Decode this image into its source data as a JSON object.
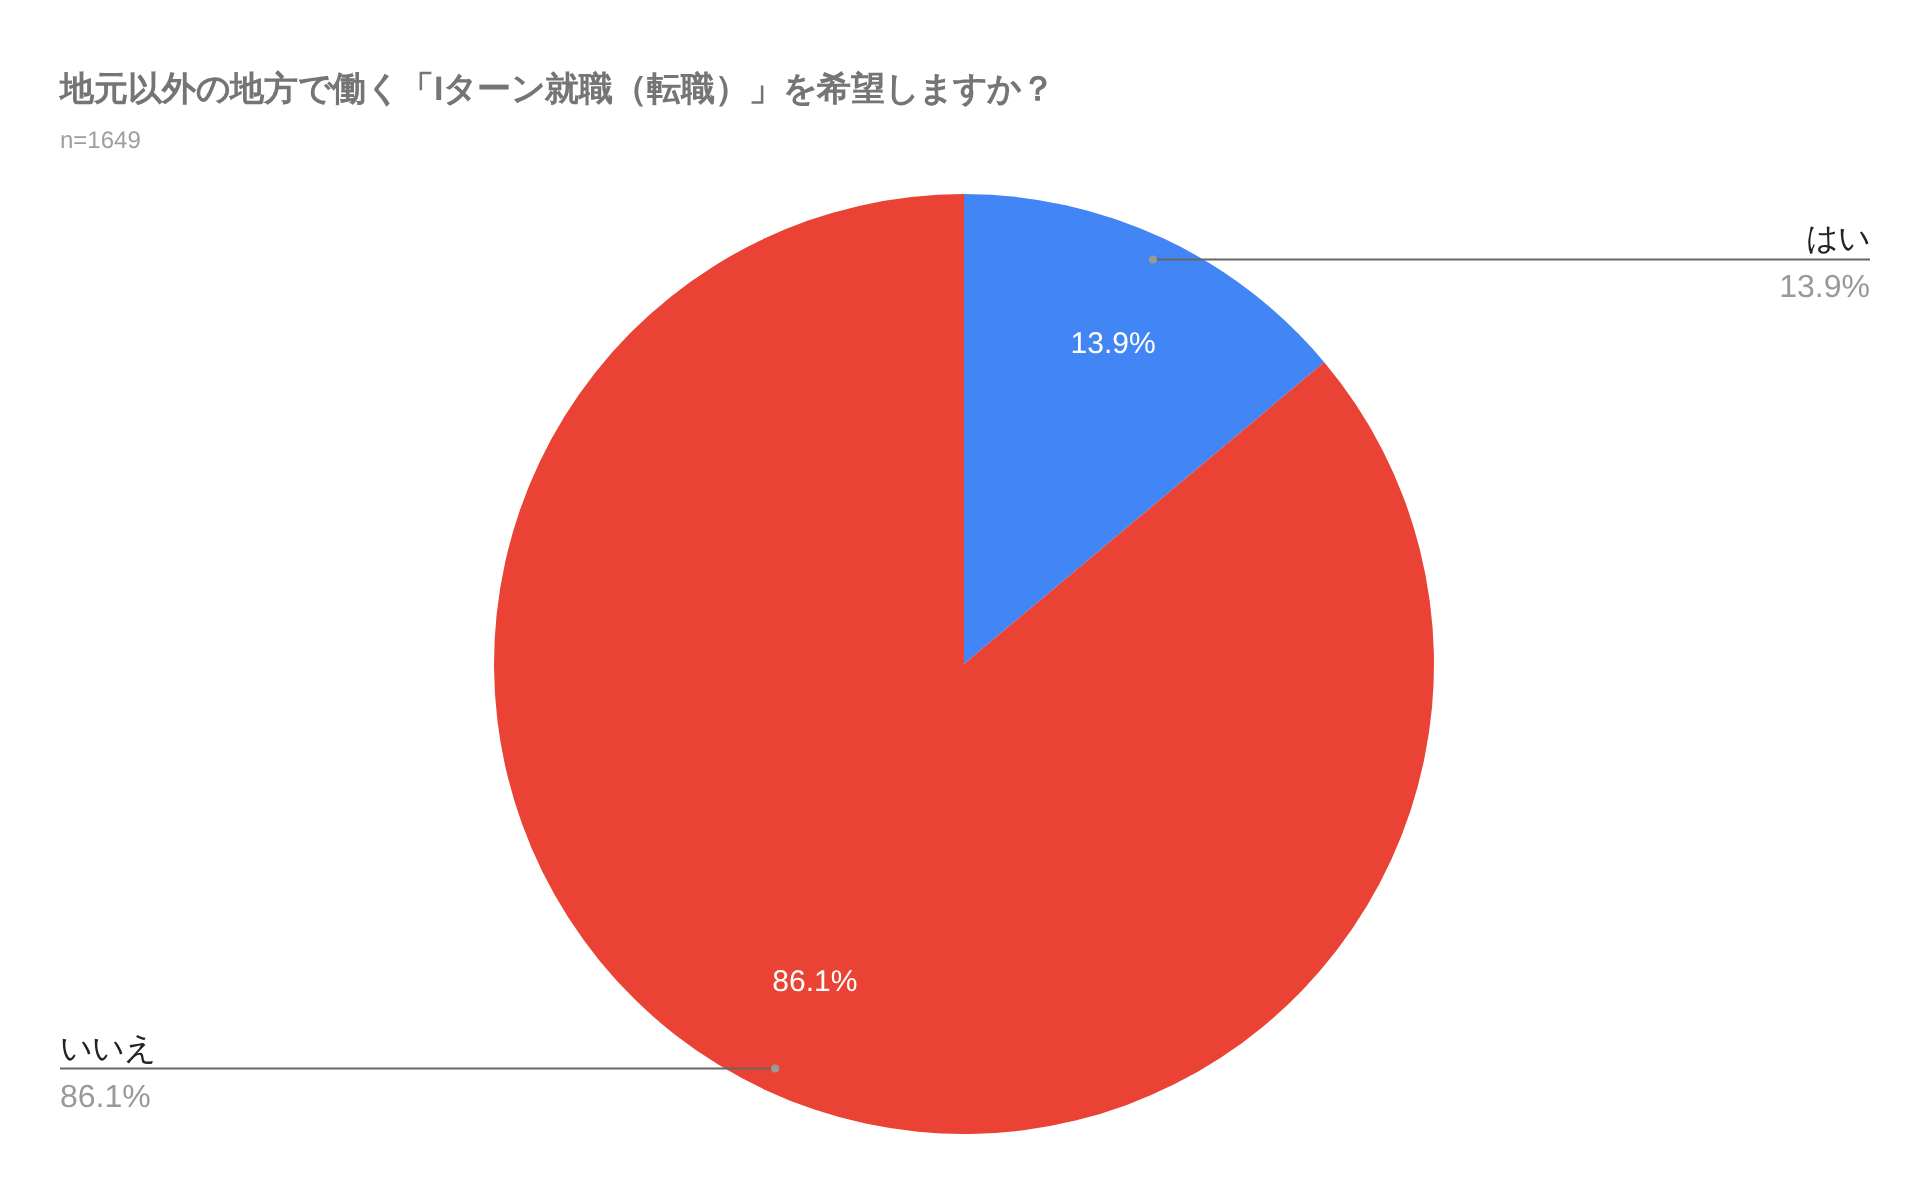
{
  "chart_data": {
    "type": "pie",
    "title": "地元以外の地方で働く「Iターン就職（転職）」を希望しますか？",
    "subtitle": "n=1649",
    "categories": [
      "はい",
      "いいえ"
    ],
    "values": [
      13.9,
      86.1
    ],
    "value_labels": [
      "13.9%",
      "86.1%"
    ],
    "colors": [
      "#4285f4",
      "#ea4335"
    ]
  }
}
